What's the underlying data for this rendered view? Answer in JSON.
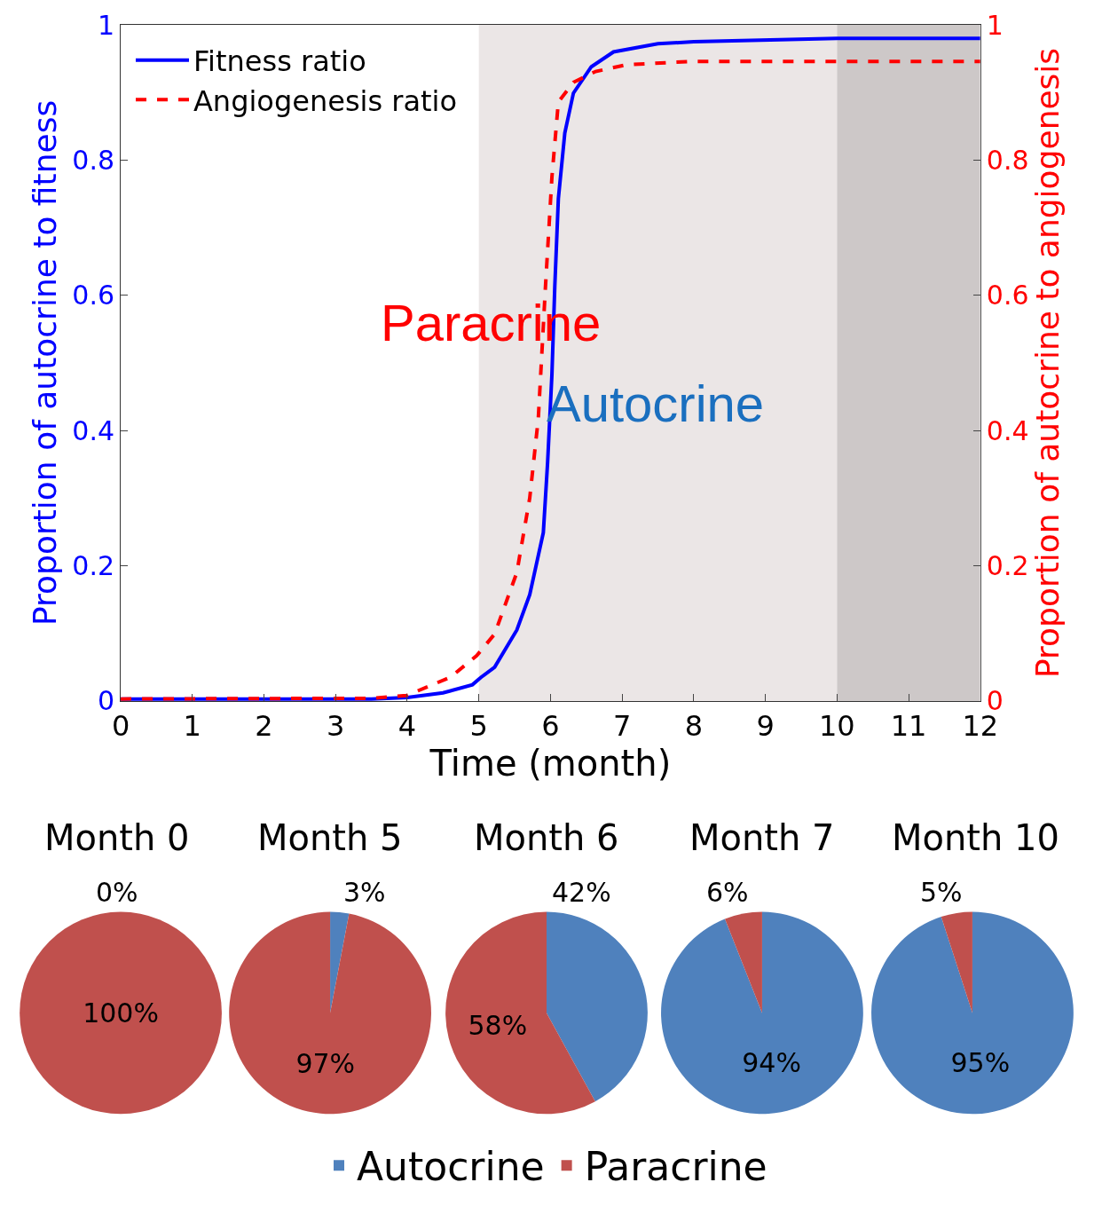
{
  "chart_data": [
    {
      "type": "line",
      "xlabel": "Time (month)",
      "ylabel": "Proportion of autocrine to fitness",
      "y2label": "Proportion of autocrine to angiogenesis",
      "xlim": [
        0,
        12
      ],
      "xticks": [
        0,
        1,
        2,
        3,
        4,
        5,
        6,
        7,
        8,
        9,
        10,
        11,
        12
      ],
      "ylim": [
        0,
        1
      ],
      "yticks": [
        0,
        0.2,
        0.4,
        0.6,
        0.8,
        1
      ],
      "y2lim": [
        0,
        1
      ],
      "y2ticks": [
        0,
        0.2,
        0.4,
        0.6,
        0.8,
        1
      ],
      "grid": false,
      "legend": "top left",
      "marker": "none",
      "annotations": [
        "Paracrine",
        "Autocrine"
      ],
      "bands": [
        {
          "axis": "x",
          "from": 5,
          "to": 10,
          "color": "#ebe6e6"
        },
        {
          "axis": "x",
          "from": 10,
          "to": 12,
          "color": "#cdc8c8"
        }
      ],
      "series": [
        {
          "name": "Fitness ratio",
          "color": "#0000ff",
          "line_style": "solid",
          "x": [
            0,
            3.5,
            4,
            4.5,
            4.91,
            5.03,
            5.22,
            5.53,
            5.71,
            5.9,
            5.96,
            6.02,
            6.06,
            6.11,
            6.2,
            6.32,
            6.57,
            6.88,
            7.5,
            8,
            10,
            12
          ],
          "values": [
            0.003,
            0.003,
            0.005,
            0.012,
            0.024,
            0.035,
            0.05,
            0.105,
            0.157,
            0.249,
            0.353,
            0.483,
            0.613,
            0.743,
            0.84,
            0.899,
            0.938,
            0.96,
            0.972,
            0.975,
            0.98,
            0.98
          ]
        },
        {
          "name": "Angiogenesis ratio",
          "color": "#ff0000",
          "line_style": "dashed",
          "axis": "y2",
          "x": [
            0,
            3.5,
            3.99,
            4.6,
            4.97,
            5.22,
            5.53,
            5.71,
            5.83,
            5.93,
            6.02,
            6.11,
            6.32,
            6.63,
            7.06,
            8,
            12
          ],
          "values": [
            0.003,
            0.004,
            0.008,
            0.035,
            0.067,
            0.099,
            0.19,
            0.3,
            0.418,
            0.613,
            0.775,
            0.886,
            0.915,
            0.931,
            0.941,
            0.946,
            0.946
          ]
        }
      ]
    },
    {
      "type": "pie",
      "title": "Month 0",
      "categories": [
        "Autocrine",
        "Paracrine"
      ],
      "values": [
        0,
        100
      ],
      "colors": [
        "#4f81bd",
        "#c0504d"
      ],
      "value_labels": [
        "0%",
        "100%"
      ],
      "legend": "bottom"
    },
    {
      "type": "pie",
      "title": "Month 5",
      "categories": [
        null,
        null
      ],
      "values": [
        3,
        97
      ],
      "colors": [
        "#4f81bd",
        "#c0504d"
      ],
      "value_labels": [
        "3%",
        "97%"
      ]
    },
    {
      "type": "pie",
      "title": "Month 6",
      "categories": [
        null,
        null
      ],
      "values": [
        42,
        58
      ],
      "colors": [
        "#4f81bd",
        "#c0504d"
      ],
      "value_labels": [
        "42%",
        "58%"
      ]
    },
    {
      "type": "pie",
      "title": "Month 7",
      "categories": [
        null,
        null
      ],
      "values": [
        94,
        6
      ],
      "colors": [
        "#4f81bd",
        "#c0504d"
      ],
      "value_labels": [
        "94%",
        "6%"
      ]
    },
    {
      "type": "pie",
      "title": "Month 10",
      "categories": [
        null,
        null
      ],
      "values": [
        95,
        5
      ],
      "colors": [
        "#4f81bd",
        "#c0504d"
      ],
      "value_labels": [
        "95%",
        "5%"
      ]
    }
  ]
}
